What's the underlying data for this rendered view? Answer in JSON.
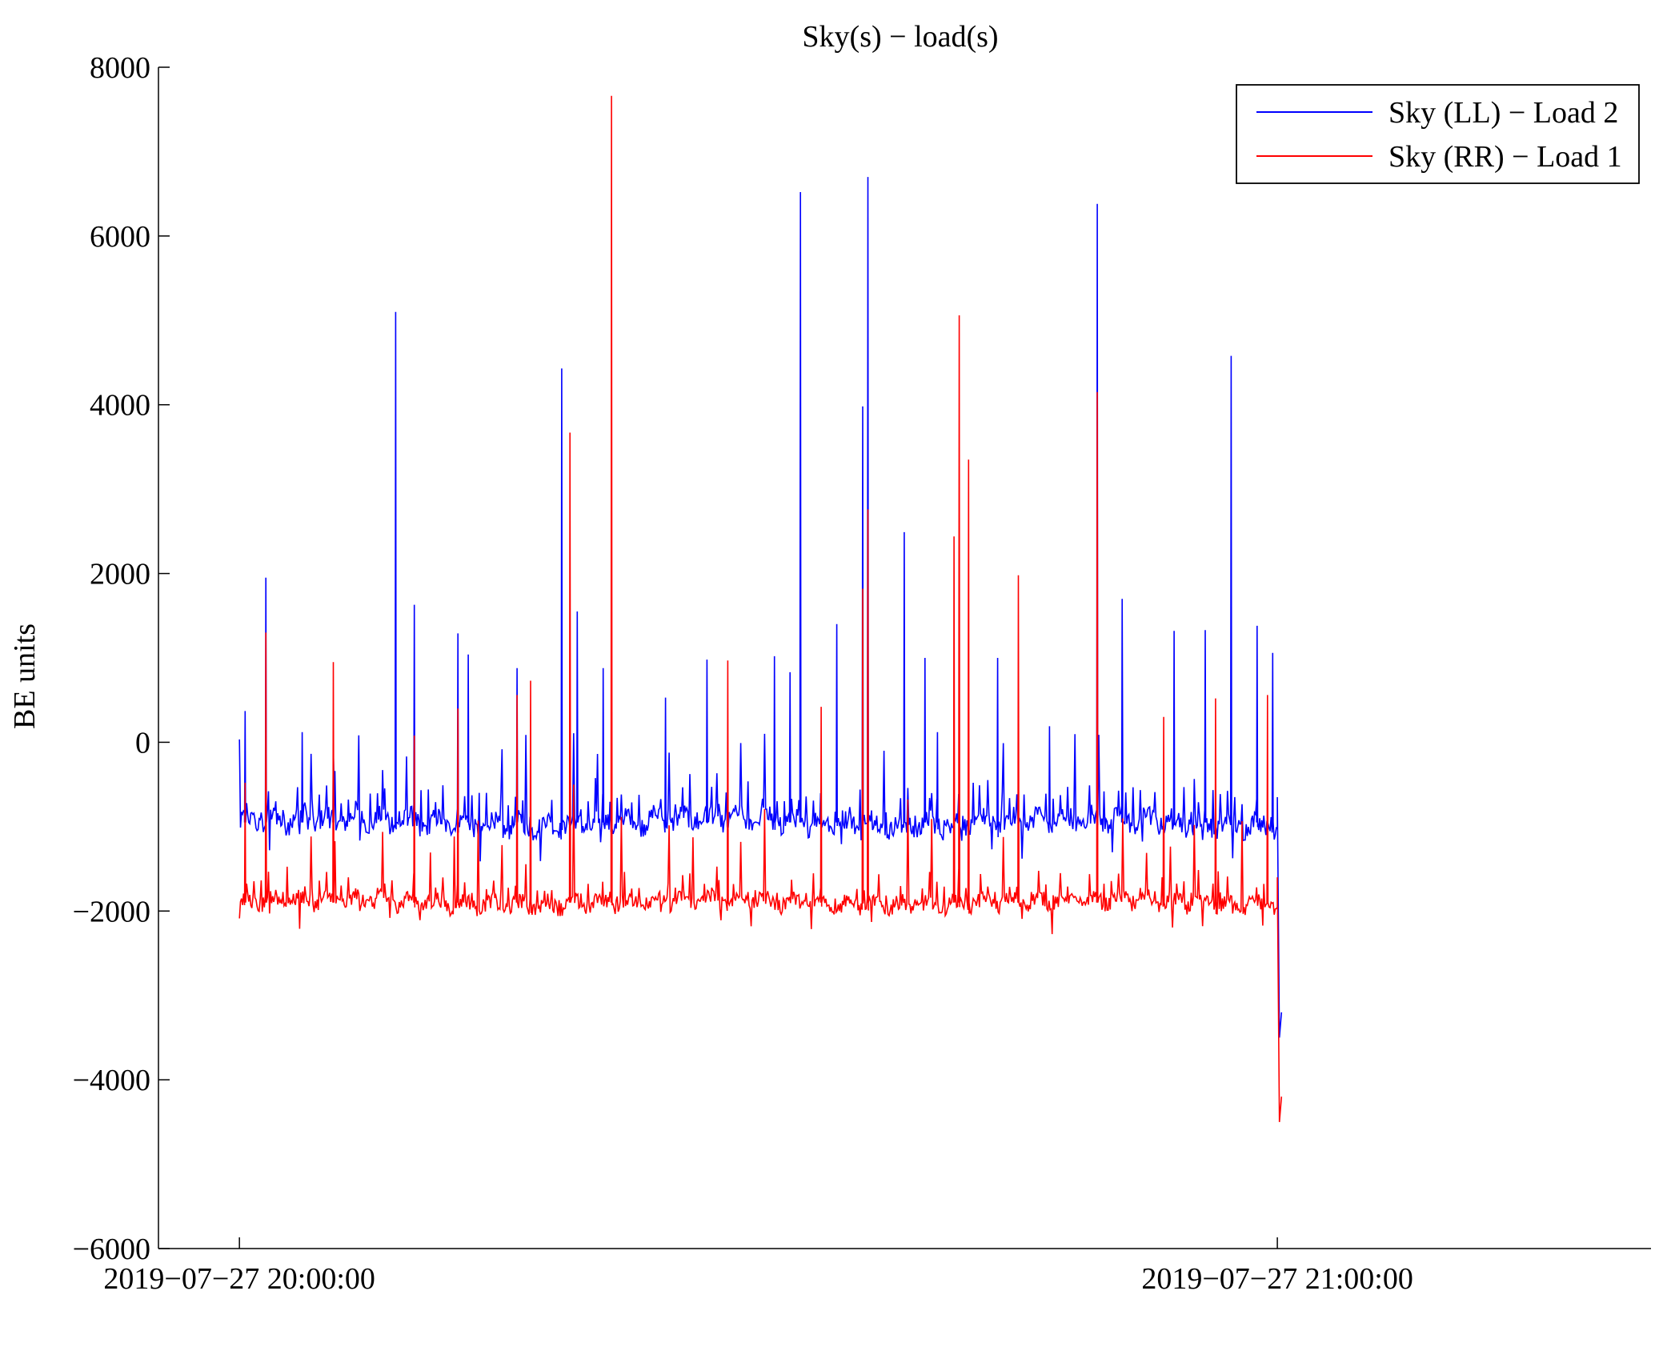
{
  "chart_data": {
    "type": "line",
    "title": "Sky(s) − load(s)",
    "xlabel": "",
    "ylabel": "BE units",
    "xlim": [
      -0.078,
      1.36
    ],
    "ylim": [
      -6000,
      8000
    ],
    "x_unit": "hours after 2019-07-27 20:00:00",
    "xticks": [
      0,
      1
    ],
    "xtick_labels": [
      "2019−07−27 20:00:00",
      "2019−07−27 21:00:00"
    ],
    "yticks": [
      -6000,
      -4000,
      -2000,
      0,
      2000,
      4000,
      6000,
      8000
    ],
    "ytick_labels": [
      "−6000",
      "−4000",
      "−2000",
      "0",
      "2000",
      "4000",
      "6000",
      "8000"
    ],
    "grid": false,
    "legend_position": "top-right",
    "series": [
      {
        "name": "Sky (LL) − Load 2",
        "color": "#0000ff",
        "baseline": -950,
        "spread": 200,
        "end_value": -3500,
        "spikes": [
          {
            "x": 0.005,
            "y": 370
          },
          {
            "x": 0.025,
            "y": 1950
          },
          {
            "x": 0.06,
            "y": 120
          },
          {
            "x": 0.09,
            "y": -100
          },
          {
            "x": 0.15,
            "y": 5100
          },
          {
            "x": 0.168,
            "y": 1630
          },
          {
            "x": 0.21,
            "y": 1290
          },
          {
            "x": 0.22,
            "y": 1040
          },
          {
            "x": 0.267,
            "y": 880
          },
          {
            "x": 0.31,
            "y": 4430
          },
          {
            "x": 0.325,
            "y": 1550
          },
          {
            "x": 0.35,
            "y": 880
          },
          {
            "x": 0.41,
            "y": 530
          },
          {
            "x": 0.45,
            "y": 980
          },
          {
            "x": 0.515,
            "y": 1020
          },
          {
            "x": 0.53,
            "y": 830
          },
          {
            "x": 0.54,
            "y": 6520
          },
          {
            "x": 0.575,
            "y": 1400
          },
          {
            "x": 0.6,
            "y": 3980
          },
          {
            "x": 0.605,
            "y": 6700
          },
          {
            "x": 0.64,
            "y": 2490
          },
          {
            "x": 0.66,
            "y": 1000
          },
          {
            "x": 0.672,
            "y": 120
          },
          {
            "x": 0.73,
            "y": 1000
          },
          {
            "x": 0.78,
            "y": 190
          },
          {
            "x": 0.826,
            "y": 6380
          },
          {
            "x": 0.85,
            "y": 1700
          },
          {
            "x": 0.9,
            "y": 1320
          },
          {
            "x": 0.93,
            "y": 1330
          },
          {
            "x": 0.955,
            "y": 4580
          },
          {
            "x": 0.98,
            "y": 1380
          },
          {
            "x": 0.995,
            "y": 1060
          }
        ]
      },
      {
        "name": "Sky (RR) − Load 1",
        "color": "#ff0000",
        "baseline": -1900,
        "spread": 150,
        "end_value": -4500,
        "spikes": [
          {
            "x": 0.005,
            "y": -480
          },
          {
            "x": 0.025,
            "y": 1300
          },
          {
            "x": 0.09,
            "y": 950
          },
          {
            "x": 0.168,
            "y": 80
          },
          {
            "x": 0.21,
            "y": 400
          },
          {
            "x": 0.267,
            "y": 560
          },
          {
            "x": 0.28,
            "y": 730
          },
          {
            "x": 0.318,
            "y": 3670
          },
          {
            "x": 0.358,
            "y": 7660
          },
          {
            "x": 0.47,
            "y": 970
          },
          {
            "x": 0.56,
            "y": 420
          },
          {
            "x": 0.6,
            "y": 1820
          },
          {
            "x": 0.605,
            "y": 2760
          },
          {
            "x": 0.688,
            "y": 2440
          },
          {
            "x": 0.693,
            "y": 5060
          },
          {
            "x": 0.702,
            "y": 3350
          },
          {
            "x": 0.75,
            "y": 1980
          },
          {
            "x": 0.826,
            "y": 4150
          },
          {
            "x": 0.89,
            "y": 300
          },
          {
            "x": 0.94,
            "y": 520
          },
          {
            "x": 0.99,
            "y": 560
          }
        ]
      }
    ]
  }
}
